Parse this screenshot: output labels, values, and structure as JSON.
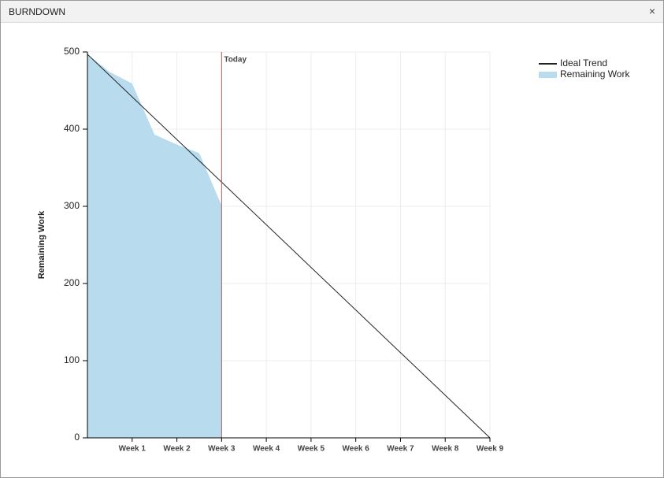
{
  "header": {
    "title": "BURNDOWN",
    "close": "×"
  },
  "chart_data": {
    "type": "burndown",
    "ylabel": "Remaining Work",
    "xlim": [
      0,
      9
    ],
    "xticks": [
      {
        "value": 1,
        "label": "Week 1"
      },
      {
        "value": 2,
        "label": "Week 2"
      },
      {
        "value": 3,
        "label": "Week 3"
      },
      {
        "value": 4,
        "label": "Week 4"
      },
      {
        "value": 5,
        "label": "Week 5"
      },
      {
        "value": 6,
        "label": "Week 6"
      },
      {
        "value": 7,
        "label": "Week 7"
      },
      {
        "value": 8,
        "label": "Week 8"
      },
      {
        "value": 9,
        "label": "Week 9"
      }
    ],
    "ylim": [
      0,
      500
    ],
    "yticks": [
      0,
      100,
      200,
      300,
      400,
      500
    ],
    "grid": true,
    "legend": "top-right",
    "today": {
      "label": "Today",
      "x": 3,
      "color": "#b05a5a"
    },
    "series": [
      {
        "name": "Ideal Trend",
        "kind": "line",
        "color": "#222222",
        "x": [
          0,
          9
        ],
        "values": [
          497,
          0
        ]
      },
      {
        "name": "Remaining Work",
        "kind": "area",
        "color": "#b8dcee",
        "x": [
          0,
          0.5,
          1,
          1.5,
          2,
          2.5,
          3
        ],
        "values": [
          497,
          474,
          459,
          393,
          380,
          369,
          301
        ]
      }
    ]
  }
}
